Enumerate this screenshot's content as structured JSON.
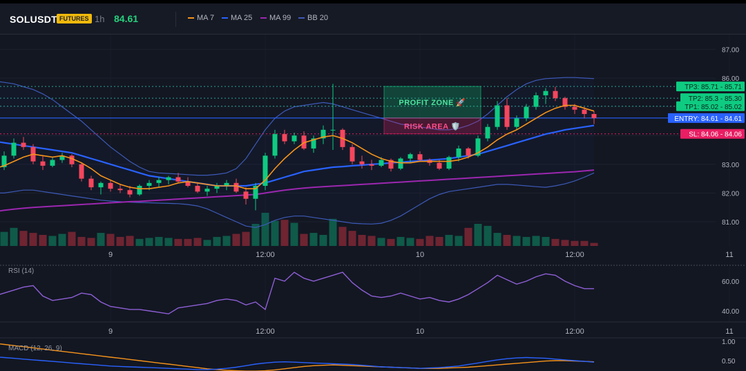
{
  "header": {
    "symbol": "SOLUSDT",
    "badge": "FUTURES",
    "timeframe": "1h",
    "price": "84.61",
    "legend": [
      {
        "label": "MA 7",
        "color": "#f7931a"
      },
      {
        "label": "MA 25",
        "color": "#2962ff"
      },
      {
        "label": "MA 99",
        "color": "#9c27b0"
      },
      {
        "label": "BB 20",
        "color": "#3d5ab8"
      }
    ]
  },
  "levels": {
    "tp3": {
      "label": "TP3: 85.71",
      "value": 85.71,
      "value_label": "85.71"
    },
    "tp2": {
      "label": "TP2: 85.3",
      "value": 85.3,
      "value_label": "85.30"
    },
    "tp1": {
      "label": "TP1: 85.02",
      "value": 85.02,
      "value_label": "85.02"
    },
    "entry": {
      "label": "ENTRY: 84.61",
      "value": 84.61,
      "value_label": "84.61"
    },
    "sl": {
      "label": "SL: 84.06",
      "value": 84.06,
      "value_label": "84.06"
    }
  },
  "zones": {
    "profit": "PROFIT ZONE 🚀",
    "risk": "RISK AREA 🛡️"
  },
  "rsi_title": "RSI (14)",
  "macd_title": "MACD (12, 26, 9)",
  "chart_data": [
    {
      "type": "candlestick",
      "title": "SOLUSDT",
      "y_ticks": [
        {
          "value": 87,
          "label": "87.00"
        },
        {
          "value": 86,
          "label": "86.00"
        },
        {
          "value": 85,
          "label": "85.00"
        },
        {
          "value": 84,
          "label": "84.00"
        },
        {
          "value": 83,
          "label": "83.00"
        },
        {
          "value": 82,
          "label": "82.00"
        },
        {
          "value": 81,
          "label": "81.00"
        }
      ],
      "ylim": [
        80.2,
        87.4
      ],
      "x_ticks": [
        {
          "index": 12,
          "label": "9"
        },
        {
          "index": 28,
          "label": "12:00"
        },
        {
          "index": 44,
          "label": "10"
        },
        {
          "index": 60,
          "label": "12:00"
        },
        {
          "index": 76,
          "label": "11"
        }
      ],
      "candles": [
        [
          82.8,
          83.0,
          82.65,
          82.9
        ],
        [
          82.9,
          83.45,
          82.8,
          83.3
        ],
        [
          83.3,
          83.9,
          83.2,
          83.75
        ],
        [
          83.75,
          83.95,
          83.5,
          83.6
        ],
        [
          83.6,
          83.7,
          83.0,
          83.1
        ],
        [
          83.1,
          83.3,
          82.8,
          82.95
        ],
        [
          82.95,
          83.25,
          82.9,
          83.15
        ],
        [
          83.15,
          83.4,
          83.05,
          83.3
        ],
        [
          83.3,
          83.35,
          82.9,
          83.0
        ],
        [
          83.0,
          83.05,
          82.4,
          82.5
        ],
        [
          82.5,
          82.6,
          82.1,
          82.2
        ],
        [
          82.2,
          82.4,
          81.95,
          82.35
        ],
        [
          82.35,
          82.45,
          82.05,
          82.15
        ],
        [
          82.15,
          82.3,
          82.0,
          82.1
        ],
        [
          82.1,
          82.25,
          81.85,
          81.95
        ],
        [
          81.95,
          82.3,
          81.9,
          82.25
        ],
        [
          82.25,
          82.45,
          82.1,
          82.35
        ],
        [
          82.35,
          82.55,
          82.2,
          82.45
        ],
        [
          82.45,
          82.6,
          82.3,
          82.55
        ],
        [
          82.55,
          82.7,
          82.35,
          82.4
        ],
        [
          82.4,
          82.55,
          82.2,
          82.25
        ],
        [
          82.25,
          82.35,
          82.0,
          82.05
        ],
        [
          82.05,
          82.25,
          81.9,
          82.15
        ],
        [
          82.15,
          82.35,
          82.0,
          82.25
        ],
        [
          82.25,
          82.45,
          82.1,
          82.35
        ],
        [
          82.35,
          82.5,
          82.0,
          82.05
        ],
        [
          82.05,
          82.2,
          81.6,
          81.8
        ],
        [
          81.8,
          82.35,
          81.4,
          82.25
        ],
        [
          82.25,
          83.4,
          82.1,
          83.3
        ],
        [
          83.3,
          84.2,
          83.2,
          84.05
        ],
        [
          84.05,
          84.2,
          83.7,
          83.8
        ],
        [
          83.8,
          84.1,
          83.7,
          84.0
        ],
        [
          84.0,
          84.15,
          83.5,
          83.55
        ],
        [
          83.55,
          84.0,
          83.4,
          83.9
        ],
        [
          83.9,
          84.35,
          83.7,
          84.2
        ],
        [
          84.2,
          85.8,
          83.5,
          84.2
        ],
        [
          84.2,
          84.25,
          83.5,
          83.6
        ],
        [
          83.6,
          83.7,
          83.0,
          83.1
        ],
        [
          83.1,
          83.3,
          82.85,
          83.0
        ],
        [
          83.0,
          83.15,
          82.8,
          82.95
        ],
        [
          82.95,
          83.25,
          82.9,
          83.15
        ],
        [
          83.15,
          83.2,
          82.75,
          82.85
        ],
        [
          82.85,
          83.25,
          82.8,
          83.2
        ],
        [
          83.2,
          83.4,
          83.05,
          83.35
        ],
        [
          83.35,
          83.45,
          83.1,
          83.15
        ],
        [
          83.15,
          83.2,
          82.95,
          83.05
        ],
        [
          83.05,
          83.15,
          82.8,
          82.85
        ],
        [
          82.85,
          83.3,
          82.8,
          83.25
        ],
        [
          83.25,
          83.65,
          83.1,
          83.55
        ],
        [
          83.55,
          83.6,
          83.2,
          83.3
        ],
        [
          83.3,
          84.0,
          83.25,
          83.9
        ],
        [
          83.9,
          84.4,
          83.8,
          84.3
        ],
        [
          84.3,
          85.2,
          84.2,
          85.05
        ],
        [
          85.05,
          85.3,
          84.2,
          84.3
        ],
        [
          84.3,
          84.7,
          84.2,
          84.6
        ],
        [
          84.6,
          85.1,
          84.5,
          85.0
        ],
        [
          85.0,
          85.5,
          84.9,
          85.4
        ],
        [
          85.4,
          85.65,
          85.1,
          85.55
        ],
        [
          85.55,
          85.7,
          85.2,
          85.3
        ],
        [
          85.3,
          85.35,
          84.9,
          85.0
        ],
        [
          85.0,
          85.1,
          84.75,
          84.9
        ],
        [
          84.9,
          85.0,
          84.6,
          84.75
        ],
        [
          84.75,
          84.85,
          84.4,
          84.61
        ]
      ],
      "ma7": [
        82.85,
        82.95,
        83.1,
        83.25,
        83.35,
        83.3,
        83.25,
        83.3,
        83.2,
        83.05,
        82.85,
        82.6,
        82.45,
        82.3,
        82.2,
        82.15,
        82.15,
        82.2,
        82.25,
        82.35,
        82.4,
        82.35,
        82.3,
        82.25,
        82.25,
        82.25,
        82.15,
        82.15,
        82.45,
        82.85,
        83.2,
        83.5,
        83.75,
        83.85,
        83.95,
        84.0,
        83.9,
        83.75,
        83.55,
        83.35,
        83.2,
        83.1,
        83.05,
        83.05,
        83.1,
        83.1,
        83.1,
        83.1,
        83.15,
        83.25,
        83.4,
        83.6,
        83.85,
        84.05,
        84.2,
        84.4,
        84.6,
        84.8,
        84.95,
        85.05,
        85.05,
        84.95,
        84.85
      ],
      "ma25": [
        83.8,
        83.75,
        83.7,
        83.65,
        83.6,
        83.55,
        83.5,
        83.45,
        83.4,
        83.3,
        83.2,
        83.1,
        83.0,
        82.9,
        82.8,
        82.7,
        82.6,
        82.55,
        82.5,
        82.45,
        82.4,
        82.35,
        82.3,
        82.25,
        82.25,
        82.25,
        82.25,
        82.3,
        82.35,
        82.45,
        82.55,
        82.65,
        82.75,
        82.8,
        82.85,
        82.9,
        82.92,
        82.95,
        82.97,
        83.0,
        83.02,
        83.05,
        83.07,
        83.1,
        83.12,
        83.15,
        83.17,
        83.2,
        83.25,
        83.3,
        83.35,
        83.45,
        83.55,
        83.65,
        83.75,
        83.85,
        83.95,
        84.05,
        84.12,
        84.2,
        84.25,
        84.3,
        84.35
      ],
      "ma99": [
        81.35,
        81.4,
        81.44,
        81.47,
        81.5,
        81.52,
        81.54,
        81.56,
        81.58,
        81.6,
        81.62,
        81.64,
        81.66,
        81.68,
        81.7,
        81.71,
        81.73,
        81.75,
        81.77,
        81.79,
        81.81,
        81.83,
        81.85,
        81.87,
        81.89,
        81.91,
        81.93,
        81.95,
        82.0,
        82.05,
        82.1,
        82.14,
        82.17,
        82.2,
        82.22,
        82.24,
        82.26,
        82.28,
        82.3,
        82.32,
        82.34,
        82.36,
        82.38,
        82.4,
        82.42,
        82.44,
        82.46,
        82.48,
        82.5,
        82.52,
        82.54,
        82.56,
        82.58,
        82.6,
        82.62,
        82.64,
        82.66,
        82.68,
        82.7,
        82.72,
        82.74,
        82.77,
        82.8
      ],
      "bb_upper": [
        85.9,
        85.85,
        85.8,
        85.7,
        85.6,
        85.45,
        85.25,
        85.0,
        84.75,
        84.5,
        84.2,
        83.9,
        83.6,
        83.35,
        83.1,
        82.9,
        82.75,
        82.7,
        82.68,
        82.66,
        82.64,
        82.62,
        82.62,
        82.65,
        82.7,
        82.85,
        83.2,
        83.7,
        84.2,
        84.6,
        84.85,
        85.0,
        85.05,
        85.1,
        85.15,
        85.1,
        85.0,
        84.9,
        84.8,
        84.7,
        84.6,
        84.5,
        84.4,
        84.35,
        84.3,
        84.25,
        84.2,
        84.2,
        84.25,
        84.35,
        84.5,
        84.75,
        85.05,
        85.35,
        85.6,
        85.8,
        85.92,
        85.98,
        86.0,
        86.02,
        86.02,
        86.0,
        85.98
      ],
      "bb_lower": [
        82.0,
        82.0,
        82.05,
        82.1,
        82.1,
        82.05,
        82.0,
        81.95,
        81.9,
        81.85,
        81.8,
        81.75,
        81.72,
        81.7,
        81.68,
        81.67,
        81.66,
        81.65,
        81.64,
        81.63,
        81.6,
        81.55,
        81.45,
        81.3,
        81.15,
        81.0,
        80.85,
        80.8,
        80.9,
        81.05,
        81.15,
        81.2,
        81.2,
        81.15,
        81.1,
        81.05,
        81.0,
        80.95,
        80.93,
        80.92,
        80.95,
        81.05,
        81.2,
        81.4,
        81.6,
        81.8,
        81.95,
        82.05,
        82.1,
        82.15,
        82.2,
        82.25,
        82.3,
        82.3,
        82.28,
        82.25,
        82.22,
        82.2,
        82.25,
        82.32,
        82.42,
        82.55,
        82.7
      ],
      "volume": [
        1200,
        1400,
        1800,
        1500,
        1300,
        1100,
        1000,
        1200,
        1400,
        900,
        800,
        1300,
        1200,
        900,
        1000,
        700,
        800,
        900,
        800,
        700,
        700,
        800,
        600,
        900,
        1000,
        1200,
        1400,
        2200,
        3300,
        2500,
        2600,
        2300,
        1200,
        1300,
        1100,
        2700,
        1900,
        1500,
        1100,
        1000,
        800,
        700,
        900,
        800,
        700,
        1000,
        900,
        1100,
        1000,
        1800,
        2200,
        2000,
        1300,
        1100,
        1000,
        900,
        1000,
        900,
        700,
        600,
        500,
        500,
        300
      ]
    },
    {
      "type": "line",
      "title": "RSI (14)",
      "y_ticks": [
        {
          "value": 60,
          "label": "60.00"
        },
        {
          "value": 40,
          "label": "40.00"
        }
      ],
      "ylim": [
        32,
        76
      ],
      "x_ticks": [
        {
          "index": 12,
          "label": "9"
        },
        {
          "index": 28,
          "label": "12:00"
        },
        {
          "index": 44,
          "label": "10"
        },
        {
          "index": 60,
          "label": "12:00"
        },
        {
          "index": 76,
          "label": "11"
        }
      ],
      "values": [
        50,
        52,
        54,
        56,
        57,
        50,
        47,
        48,
        49,
        52,
        51,
        46,
        43,
        42,
        41,
        41,
        40,
        39,
        38,
        42,
        43,
        44,
        45,
        47,
        48,
        47,
        44,
        46,
        41,
        62,
        60,
        66,
        62,
        60,
        62,
        64,
        66,
        59,
        54,
        50,
        49,
        50,
        52,
        50,
        48,
        49,
        47,
        46,
        48,
        51,
        55,
        59,
        64,
        61,
        58,
        60,
        63,
        65,
        64,
        60,
        57,
        55,
        55
      ],
      "color": "#8e5fd6"
    },
    {
      "type": "line",
      "title": "MACD (12, 26, 9)",
      "y_ticks": [
        {
          "value": 1.0,
          "label": "1.00"
        },
        {
          "value": 0.5,
          "label": "0.50"
        }
      ],
      "ylim": [
        0.15,
        1.0
      ],
      "series": [
        {
          "values": [
            0.95,
            0.92,
            0.89,
            0.86,
            0.83,
            0.8,
            0.77,
            0.74,
            0.71,
            0.68,
            0.65,
            0.62,
            0.59,
            0.56,
            0.53,
            0.5,
            0.47,
            0.44,
            0.41,
            0.38,
            0.35,
            0.32,
            0.29,
            0.27,
            0.25,
            0.24,
            0.23,
            0.23,
            0.24,
            0.26,
            0.29,
            0.32,
            0.35,
            0.37,
            0.38,
            0.39,
            0.38,
            0.37,
            0.36,
            0.35,
            0.34,
            0.33,
            0.32,
            0.31,
            0.3,
            0.3,
            0.3,
            0.31,
            0.32,
            0.33,
            0.35,
            0.37,
            0.39,
            0.41,
            0.43,
            0.45,
            0.47,
            0.49,
            0.5,
            0.5,
            0.49,
            0.48,
            0.47
          ],
          "color": "#f7931a"
        },
        {
          "values": [
            0.6,
            0.58,
            0.56,
            0.54,
            0.52,
            0.5,
            0.48,
            0.46,
            0.44,
            0.42,
            0.4,
            0.38,
            0.36,
            0.35,
            0.34,
            0.33,
            0.32,
            0.31,
            0.3,
            0.29,
            0.28,
            0.27,
            0.27,
            0.28,
            0.3,
            0.33,
            0.37,
            0.41,
            0.44,
            0.46,
            0.47,
            0.46,
            0.45,
            0.44,
            0.43,
            0.42,
            0.41,
            0.4,
            0.38,
            0.36,
            0.34,
            0.33,
            0.32,
            0.31,
            0.3,
            0.31,
            0.32,
            0.34,
            0.36,
            0.4,
            0.44,
            0.48,
            0.52,
            0.55,
            0.57,
            0.58,
            0.57,
            0.56,
            0.54,
            0.52,
            0.5,
            0.48,
            0.46
          ],
          "color": "#2962ff"
        }
      ]
    }
  ]
}
